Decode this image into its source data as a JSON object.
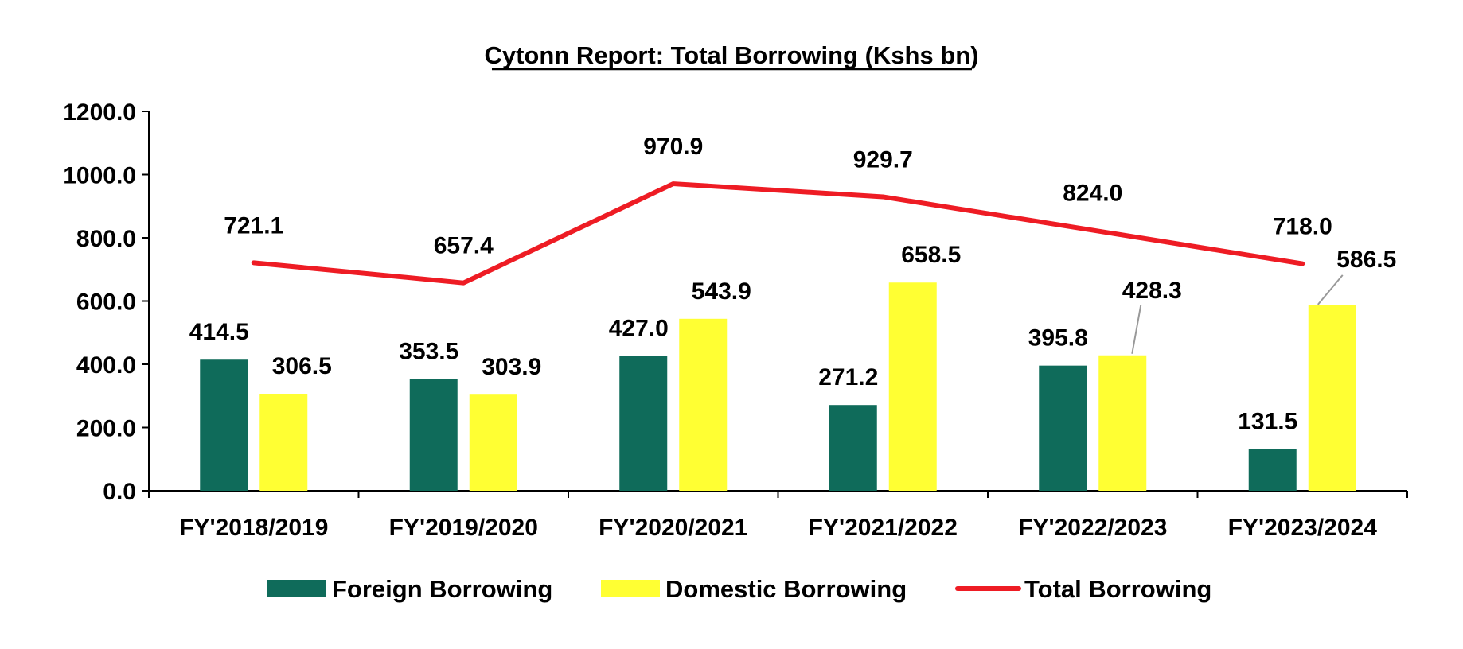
{
  "chart_data": {
    "type": "bar",
    "title": "Cytonn Report: Total Borrowing (Kshs bn)",
    "xlabel": "",
    "ylabel": "",
    "ylim": [
      0,
      1200
    ],
    "yticks": [
      "0.0",
      "200.0",
      "400.0",
      "600.0",
      "800.0",
      "1000.0",
      "1200.0"
    ],
    "categories": [
      "FY'2018/2019",
      "FY'2019/2020",
      "FY'2020/2021",
      "FY'2021/2022",
      "FY'2022/2023",
      "FY'2023/2024"
    ],
    "series": [
      {
        "name": "Foreign Borrowing",
        "kind": "bar",
        "color": "#0f6b5a",
        "values": [
          414.5,
          353.5,
          427.0,
          271.2,
          395.8,
          131.5
        ],
        "labels": [
          "414.5",
          "353.5",
          "427.0",
          "271.2",
          "395.8",
          "131.5"
        ]
      },
      {
        "name": "Domestic Borrowing",
        "kind": "bar",
        "color": "#ffff33",
        "values": [
          306.5,
          303.9,
          543.9,
          658.5,
          428.3,
          586.5
        ],
        "labels": [
          "306.5",
          "303.9",
          "543.9",
          "658.5",
          "428.3",
          "586.5"
        ]
      },
      {
        "name": "Total Borrowing",
        "kind": "line",
        "color": "#ee1c24",
        "values": [
          721.1,
          657.4,
          970.9,
          929.7,
          824.0,
          718.0
        ],
        "labels": [
          "721.1",
          "657.4",
          "970.9",
          "929.7",
          "824.0",
          "718.0"
        ]
      }
    ],
    "grid": false,
    "legend_position": "bottom"
  }
}
